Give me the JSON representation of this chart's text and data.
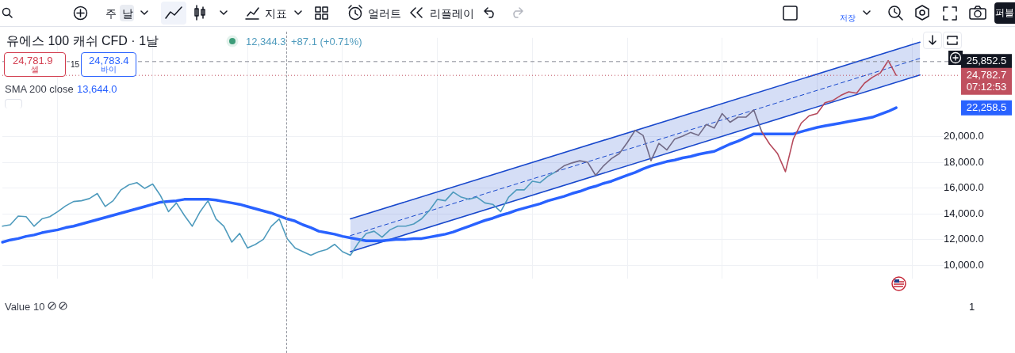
{
  "chart_data": {
    "type": "line",
    "title": "유에스 100 캐쉬 CFD · 1날",
    "categories": [
      null,
      null,
      null,
      null,
      null,
      null,
      null,
      null,
      null,
      null,
      null,
      null,
      null,
      null,
      null,
      null,
      null,
      null,
      null,
      null,
      null,
      null,
      null,
      null,
      null,
      null,
      null,
      null,
      null,
      null,
      null,
      null,
      null,
      null,
      null,
      null,
      null,
      null,
      null,
      null,
      null,
      null,
      null,
      null,
      null,
      null,
      null,
      null,
      null,
      null,
      null,
      null,
      null,
      null,
      null,
      null,
      null,
      null,
      null,
      null,
      null,
      null,
      null,
      null,
      null,
      null,
      null,
      null,
      null,
      null,
      null,
      null,
      null,
      null,
      null,
      null,
      null,
      null,
      null,
      null,
      null,
      null,
      null,
      null,
      null,
      null,
      null,
      null,
      null,
      null,
      null,
      null,
      null,
      null,
      null,
      null,
      null,
      null,
      null,
      null,
      null,
      null,
      null,
      null,
      null,
      null,
      null,
      null,
      null,
      null,
      null,
      null,
      null,
      null,
      null,
      null,
      null,
      null,
      null,
      null
    ],
    "series": [
      {
        "color": "#1848cc",
        "values": [
          null,
          null,
          null,
          null,
          null,
          null,
          null,
          null,
          null,
          null,
          null,
          null,
          null,
          null,
          null,
          null,
          null,
          null,
          null,
          null,
          null,
          null,
          null,
          null,
          null,
          null,
          null,
          null,
          null,
          null,
          null,
          null,
          null,
          null,
          null,
          null,
          null,
          null,
          null,
          null,
          null,
          null,
          null,
          null,
          13620,
          null,
          null,
          null,
          null,
          null,
          null,
          null,
          null,
          null,
          null,
          null,
          null,
          null,
          null,
          null,
          null,
          null,
          null,
          null,
          null,
          null,
          null,
          null,
          null,
          null,
          null,
          null,
          null,
          null,
          null,
          null,
          null,
          null,
          null,
          null,
          null,
          null,
          null,
          null,
          null,
          null,
          null,
          null,
          null,
          null,
          null,
          null,
          null,
          null,
          null,
          null,
          null,
          null,
          null,
          null,
          null,
          null,
          null,
          null,
          null,
          null,
          null,
          null,
          null,
          null,
          null,
          null,
          null,
          null,
          null,
          null,
          27360,
          null,
          null,
          null
        ]
      },
      {
        "color": "#1848cc",
        "line_style": "dashed",
        "values": [
          null,
          null,
          null,
          null,
          null,
          null,
          null,
          null,
          null,
          null,
          null,
          null,
          null,
          null,
          null,
          null,
          null,
          null,
          null,
          null,
          null,
          null,
          null,
          null,
          null,
          null,
          null,
          null,
          null,
          null,
          null,
          null,
          null,
          null,
          null,
          null,
          null,
          null,
          null,
          null,
          null,
          null,
          null,
          null,
          12320,
          null,
          null,
          null,
          null,
          null,
          null,
          null,
          null,
          null,
          null,
          null,
          null,
          null,
          null,
          null,
          null,
          null,
          null,
          null,
          null,
          null,
          null,
          null,
          null,
          null,
          null,
          null,
          null,
          null,
          null,
          null,
          null,
          null,
          null,
          null,
          null,
          null,
          null,
          null,
          null,
          null,
          null,
          null,
          null,
          null,
          null,
          null,
          null,
          null,
          null,
          null,
          null,
          null,
          null,
          null,
          null,
          null,
          null,
          null,
          null,
          null,
          null,
          null,
          null,
          null,
          null,
          null,
          null,
          null,
          null,
          null,
          26100,
          null,
          null,
          null
        ],
        "lower": [
          null,
          null,
          null,
          null,
          null,
          null,
          null,
          null,
          null,
          null,
          null,
          null,
          null,
          null,
          null,
          null,
          null,
          null,
          null,
          null,
          null,
          null,
          null,
          null,
          null,
          null,
          null,
          null,
          null,
          null,
          null,
          null,
          null,
          null,
          null,
          null,
          null,
          null,
          null,
          null,
          null,
          null,
          null,
          null,
          11070,
          null,
          null,
          null,
          null,
          null,
          null,
          null,
          null,
          null,
          null,
          null,
          null,
          null,
          null,
          null,
          null,
          null,
          null,
          null,
          null,
          null,
          null,
          null,
          null,
          null,
          null,
          null,
          null,
          null,
          null,
          null,
          null,
          null,
          null,
          null,
          null,
          null,
          null,
          null,
          null,
          null,
          null,
          null,
          null,
          null,
          null,
          null,
          null,
          null,
          null,
          null,
          null,
          null,
          null,
          null,
          null,
          null,
          null,
          null,
          null,
          null,
          null,
          null,
          null,
          null,
          null,
          null,
          null,
          null,
          null,
          null,
          24810,
          null,
          null,
          null
        ],
        "upper": [
          null,
          null,
          null,
          null,
          null,
          null,
          null,
          null,
          null,
          null,
          null,
          null,
          null,
          null,
          null,
          null,
          null,
          null,
          null,
          null,
          null,
          null,
          null,
          null,
          null,
          null,
          null,
          null,
          null,
          null,
          null,
          null,
          null,
          null,
          null,
          null,
          null,
          null,
          null,
          null,
          null,
          null,
          null,
          null,
          13620,
          null,
          null,
          null,
          null,
          null,
          null,
          null,
          null,
          null,
          null,
          null,
          null,
          null,
          null,
          null,
          null,
          null,
          null,
          null,
          null,
          null,
          null,
          null,
          null,
          null,
          null,
          null,
          null,
          null,
          null,
          null,
          null,
          null,
          null,
          null,
          null,
          null,
          null,
          null,
          null,
          null,
          null,
          null,
          null,
          null,
          null,
          null,
          null,
          null,
          null,
          null,
          null,
          null,
          null,
          null,
          null,
          null,
          null,
          null,
          null,
          null,
          null,
          null,
          null,
          null,
          null,
          null,
          null,
          null,
          null,
          null,
          27360,
          null,
          null,
          null
        ]
      },
      {
        "color": "#1848cc",
        "values": [
          null,
          null,
          null,
          null,
          null,
          null,
          null,
          null,
          null,
          null,
          null,
          null,
          null,
          null,
          null,
          null,
          null,
          null,
          null,
          null,
          null,
          null,
          null,
          null,
          null,
          null,
          null,
          null,
          null,
          null,
          null,
          null,
          null,
          null,
          null,
          null,
          null,
          null,
          null,
          null,
          null,
          null,
          null,
          null,
          11070,
          null,
          null,
          null,
          null,
          null,
          null,
          null,
          null,
          null,
          null,
          null,
          null,
          null,
          null,
          null,
          null,
          null,
          null,
          null,
          null,
          null,
          null,
          null,
          null,
          null,
          null,
          null,
          null,
          null,
          null,
          null,
          null,
          null,
          null,
          null,
          null,
          null,
          null,
          null,
          null,
          null,
          null,
          null,
          null,
          null,
          null,
          null,
          null,
          null,
          null,
          null,
          null,
          null,
          null,
          null,
          null,
          null,
          null,
          null,
          null,
          null,
          null,
          null,
          null,
          null,
          null,
          null,
          null,
          null,
          null,
          null,
          24810,
          null,
          null,
          null
        ]
      },
      {
        "color": "#2962ff",
        "values": [
          11810,
          11980,
          12090,
          12260,
          12370,
          12540,
          12660,
          12770,
          12940,
          13050,
          13220,
          13390,
          13560,
          13730,
          13900,
          14070,
          14240,
          14410,
          14580,
          14750,
          14920,
          14970,
          15030,
          15140,
          15140,
          15140,
          15140,
          15090,
          14970,
          14860,
          14750,
          14580,
          14410,
          14240,
          14070,
          13840,
          13620,
          13450,
          13160,
          12940,
          12660,
          12540,
          12430,
          12260,
          12150,
          12030,
          11920,
          11920,
          11920,
          11980,
          12030,
          12030,
          12090,
          12090,
          12200,
          12320,
          12430,
          12600,
          12830,
          13050,
          13280,
          13500,
          13670,
          13900,
          14070,
          14290,
          14460,
          14630,
          14800,
          15030,
          15200,
          15370,
          15590,
          15760,
          15990,
          16160,
          16380,
          16550,
          16780,
          17010,
          17230,
          17510,
          17740,
          17910,
          18080,
          18190,
          18360,
          18470,
          18640,
          18760,
          18870,
          19150,
          19440,
          19660,
          19940,
          20230,
          20230,
          20230,
          20230,
          20230,
          20230,
          20400,
          20570,
          20730,
          20850,
          20960,
          21070,
          21190,
          21300,
          21410,
          21530,
          21750,
          21980,
          22260,
          null,
          null,
          null,
          null,
          null,
          null
        ]
      },
      {
        "color": "#4f9bbd",
        "values": [
          13050,
          13160,
          13840,
          13790,
          13050,
          13620,
          13790,
          14180,
          14630,
          14970,
          15030,
          15200,
          15590,
          14580,
          15030,
          15880,
          16270,
          16440,
          15990,
          16330,
          15420,
          14180,
          14860,
          13900,
          13050,
          14180,
          15030,
          13620,
          13050,
          11810,
          12490,
          11360,
          11640,
          12030,
          13050,
          13620,
          12090,
          11360,
          11070,
          10790,
          11070,
          11240,
          11640,
          11070,
          10790,
          11750,
          12490,
          12660,
          12200,
          12770,
          13050,
          13050,
          13220,
          13620,
          14290,
          15140,
          15030,
          15710,
          15310,
          15140,
          15310,
          14860,
          14750,
          14180,
          15310,
          15880,
          15880,
          16550,
          16440,
          16950,
          17290,
          null,
          null,
          null,
          null,
          null,
          null,
          null,
          null,
          null,
          null,
          null,
          null,
          null,
          null,
          null,
          null,
          null,
          null,
          null,
          null,
          null,
          null,
          null,
          null,
          null,
          null,
          null,
          null,
          null,
          null,
          null,
          null,
          null,
          null,
          null,
          null,
          null,
          null,
          null,
          null,
          null,
          null,
          null,
          null,
          null,
          null,
          null,
          null,
          null
        ]
      },
      {
        "color": "#716a86",
        "values": [
          null,
          null,
          null,
          null,
          null,
          null,
          null,
          null,
          null,
          null,
          null,
          null,
          null,
          null,
          null,
          null,
          null,
          null,
          null,
          null,
          null,
          null,
          null,
          null,
          null,
          null,
          null,
          null,
          null,
          null,
          null,
          null,
          null,
          null,
          null,
          null,
          null,
          null,
          null,
          null,
          null,
          null,
          null,
          null,
          null,
          null,
          null,
          null,
          null,
          null,
          null,
          null,
          null,
          null,
          null,
          null,
          null,
          null,
          null,
          null,
          null,
          null,
          null,
          null,
          null,
          null,
          null,
          null,
          null,
          null,
          17290,
          17740,
          17970,
          18140,
          18020,
          17010,
          17740,
          18310,
          18700,
          19550,
          20510,
          20110,
          18140,
          19490,
          18980,
          19830,
          20060,
          20340,
          20110,
          20960,
          20680,
          21810,
          21130,
          21530,
          21530,
          22090,
          20400,
          null,
          null,
          null,
          null,
          null,
          null,
          null,
          null,
          null,
          null,
          null,
          null,
          null,
          null,
          null,
          null,
          null,
          null,
          null,
          null,
          null,
          null,
          null
        ]
      },
      {
        "color": "#b5495b",
        "values": [
          null,
          null,
          null,
          null,
          null,
          null,
          null,
          null,
          null,
          null,
          null,
          null,
          null,
          null,
          null,
          null,
          null,
          null,
          null,
          null,
          null,
          null,
          null,
          null,
          null,
          null,
          null,
          null,
          null,
          null,
          null,
          null,
          null,
          null,
          null,
          null,
          null,
          null,
          null,
          null,
          null,
          null,
          null,
          null,
          null,
          null,
          null,
          null,
          null,
          null,
          null,
          null,
          null,
          null,
          null,
          null,
          null,
          null,
          null,
          null,
          null,
          null,
          null,
          null,
          null,
          null,
          null,
          null,
          null,
          null,
          null,
          null,
          null,
          null,
          null,
          null,
          null,
          null,
          null,
          null,
          null,
          null,
          null,
          null,
          null,
          null,
          null,
          null,
          null,
          null,
          null,
          null,
          null,
          null,
          null,
          null,
          20400,
          19440,
          18700,
          17290,
          19830,
          21070,
          21640,
          21810,
          22660,
          22830,
          23220,
          23500,
          23390,
          24180,
          24630,
          24970,
          25930,
          24780,
          null,
          null,
          null,
          null,
          null,
          null
        ]
      }
    ],
    "ylim": [
      9000,
      27700
    ],
    "yticks": [
      {
        "value": 10000,
        "label": "10,000.0"
      },
      {
        "value": 12000,
        "label": "12,000.0"
      },
      {
        "value": 14000,
        "label": "14,000.0"
      },
      {
        "value": 16000,
        "label": "16,000.0"
      },
      {
        "value": 18000,
        "label": "18,000.0"
      },
      {
        "value": 20000,
        "label": "20,000.0"
      }
    ],
    "grid": true,
    "ref_lines": [
      {
        "axis": "y",
        "value": 25852.5,
        "label": "25,852.5",
        "color": "#8a8d96",
        "line_style": "dashed"
      },
      {
        "axis": "y",
        "value": 24782.7,
        "label": "24,782.7",
        "color": "#c0505f",
        "line_style": "dotted"
      }
    ],
    "annotations": [
      "12,344.3",
      "+87.1 (+0.71%)",
      "24,781.9",
      "셀",
      "15",
      "24,783.4",
      "바이",
      "SMA 200 close",
      "13,644.0",
      "07:12:53",
      "22,258.5",
      "Value 10",
      "1",
      "주",
      "날",
      "지표",
      "얼러트",
      "리플레이",
      "저장",
      "퍼블"
    ]
  }
}
